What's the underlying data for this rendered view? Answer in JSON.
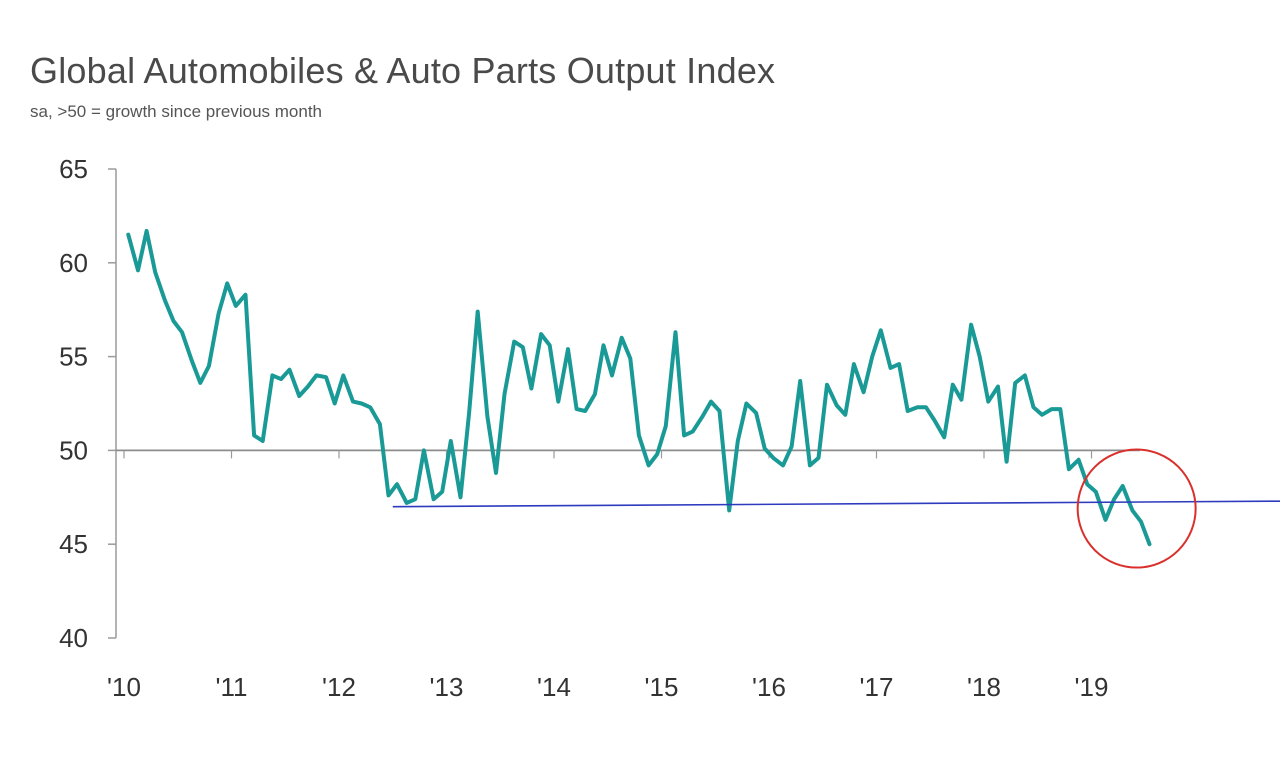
{
  "colors": {
    "series": "#1a9a96",
    "axis": "#9a9a9a",
    "reference_line": "#8c8c8c",
    "support_line": "#2e3bbf",
    "highlight_circle": "#d9302c"
  },
  "chart_data": {
    "type": "line",
    "title": "Global Automobiles & Auto Parts Output Index",
    "subtitle": "sa, >50 = growth since previous month",
    "xlabel": "",
    "ylabel": "",
    "ylim": [
      40,
      65
    ],
    "yticks": [
      40,
      45,
      50,
      55,
      60,
      65
    ],
    "xlim": [
      2010.0,
      2019.9
    ],
    "xticks": [
      {
        "label": "'10",
        "value": 2010
      },
      {
        "label": "'11",
        "value": 2011
      },
      {
        "label": "'12",
        "value": 2012
      },
      {
        "label": "'13",
        "value": 2013
      },
      {
        "label": "'14",
        "value": 2014
      },
      {
        "label": "'15",
        "value": 2015
      },
      {
        "label": "'16",
        "value": 2016
      },
      {
        "label": "'17",
        "value": 2017
      },
      {
        "label": "'18",
        "value": 2018
      },
      {
        "label": "'19",
        "value": 2019
      }
    ],
    "reference_value": 50,
    "grid": false,
    "legend": "none",
    "series": [
      {
        "x": [
          2010.04,
          2010.13,
          2010.21,
          2010.29,
          2010.38,
          2010.46,
          2010.54,
          2010.63,
          2010.71,
          2010.79,
          2010.88,
          2010.96,
          2011.04,
          2011.13,
          2011.21,
          2011.29,
          2011.38,
          2011.46,
          2011.54,
          2011.63,
          2011.71,
          2011.79,
          2011.88,
          2011.96,
          2012.04,
          2012.13,
          2012.21,
          2012.29,
          2012.38,
          2012.46,
          2012.54,
          2012.63,
          2012.71,
          2012.79,
          2012.88,
          2012.96,
          2013.04,
          2013.13,
          2013.21,
          2013.29,
          2013.38,
          2013.46,
          2013.54,
          2013.63,
          2013.71,
          2013.79,
          2013.88,
          2013.96,
          2014.04,
          2014.13,
          2014.21,
          2014.29,
          2014.38,
          2014.46,
          2014.54,
          2014.63,
          2014.71,
          2014.79,
          2014.88,
          2014.96,
          2015.04,
          2015.13,
          2015.21,
          2015.29,
          2015.38,
          2015.46,
          2015.54,
          2015.63,
          2015.71,
          2015.79,
          2015.88,
          2015.96,
          2016.04,
          2016.13,
          2016.21,
          2016.29,
          2016.38,
          2016.46,
          2016.54,
          2016.63,
          2016.71,
          2016.79,
          2016.88,
          2016.96,
          2017.04,
          2017.13,
          2017.21,
          2017.29,
          2017.38,
          2017.46,
          2017.54,
          2017.63,
          2017.71,
          2017.79,
          2017.88,
          2017.96,
          2018.04,
          2018.13,
          2018.21,
          2018.29,
          2018.38,
          2018.46,
          2018.54,
          2018.63,
          2018.71,
          2018.79,
          2018.88,
          2018.96,
          2019.04,
          2019.13,
          2019.21,
          2019.29,
          2019.38,
          2019.46,
          2019.54
        ],
        "values": [
          61.5,
          59.6,
          61.7,
          59.5,
          58.0,
          56.9,
          56.3,
          54.8,
          53.6,
          54.5,
          57.3,
          58.9,
          57.7,
          58.3,
          50.8,
          50.5,
          54.0,
          53.8,
          54.3,
          52.9,
          53.4,
          54.0,
          53.9,
          52.5,
          54.0,
          52.6,
          52.5,
          52.3,
          51.4,
          47.6,
          48.2,
          47.2,
          47.4,
          50.0,
          47.4,
          47.8,
          50.5,
          47.5,
          52.0,
          57.4,
          51.8,
          48.8,
          53.0,
          55.8,
          55.5,
          53.3,
          56.2,
          55.6,
          52.6,
          55.4,
          52.2,
          52.1,
          53.0,
          55.6,
          54.0,
          56.0,
          54.9,
          50.8,
          49.2,
          49.8,
          51.3,
          56.3,
          50.8,
          51.0,
          51.8,
          52.6,
          52.1,
          46.8,
          50.5,
          52.5,
          52.0,
          50.1,
          49.6,
          49.2,
          50.2,
          53.7,
          49.2,
          49.6,
          53.5,
          52.4,
          51.9,
          54.6,
          53.1,
          55.0,
          56.4,
          54.4,
          54.6,
          52.1,
          52.3,
          52.3,
          51.6,
          50.7,
          53.5,
          52.7,
          56.7,
          55.0,
          52.6,
          53.4,
          49.4,
          53.6,
          54.0,
          52.3,
          51.9,
          52.2,
          52.2,
          49.0,
          49.5,
          48.2,
          47.8,
          46.3,
          47.4,
          48.1,
          46.8,
          46.2,
          45.0
        ]
      }
    ],
    "annotations": [
      {
        "type": "trendline",
        "from": [
          2012.5,
          47.0
        ],
        "to": [
          2020.9,
          47.3
        ]
      },
      {
        "type": "circle",
        "center": [
          2019.42,
          46.9
        ]
      }
    ]
  }
}
